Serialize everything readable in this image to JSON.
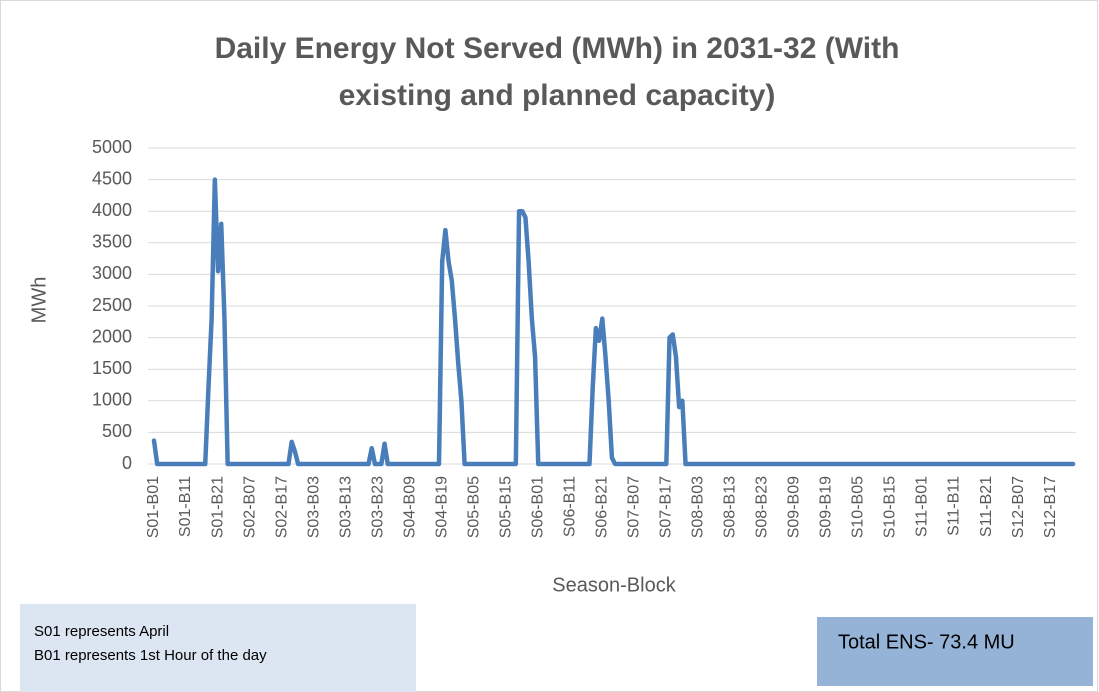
{
  "chart_data": {
    "type": "line",
    "title": [
      "Daily Energy Not Served (MWh) in 2031-32 (With",
      "existing and planned capacity)"
    ],
    "y_label": "MWh",
    "x_label": "Season-Block",
    "notes": [
      "S01 represents April",
      "B01 represents 1st Hour of the day"
    ],
    "total_label": "Total ENS- 73.4 MU",
    "ylim": [
      0,
      5000
    ],
    "yticks": [
      0,
      500,
      1000,
      1500,
      2000,
      2500,
      3000,
      3500,
      4000,
      4500,
      5000
    ],
    "grid": true,
    "categories": [
      "S01-B01",
      null,
      null,
      null,
      null,
      null,
      null,
      null,
      null,
      null,
      "S01-B11",
      null,
      null,
      null,
      null,
      null,
      null,
      null,
      null,
      null,
      "S01-B21",
      null,
      null,
      null,
      null,
      null,
      null,
      null,
      null,
      null,
      "S02-B07",
      null,
      null,
      null,
      null,
      null,
      null,
      null,
      null,
      null,
      "S02-B17",
      null,
      null,
      null,
      null,
      null,
      null,
      null,
      null,
      null,
      "S03-B03",
      null,
      null,
      null,
      null,
      null,
      null,
      null,
      null,
      null,
      "S03-B13",
      null,
      null,
      null,
      null,
      null,
      null,
      null,
      null,
      null,
      "S03-B23",
      null,
      null,
      null,
      null,
      null,
      null,
      null,
      null,
      null,
      "S04-B09",
      null,
      null,
      null,
      null,
      null,
      null,
      null,
      null,
      null,
      "S04-B19",
      null,
      null,
      null,
      null,
      null,
      null,
      null,
      null,
      null,
      "S05-B05",
      null,
      null,
      null,
      null,
      null,
      null,
      null,
      null,
      null,
      "S05-B15",
      null,
      null,
      null,
      null,
      null,
      null,
      null,
      null,
      null,
      "S06-B01",
      null,
      null,
      null,
      null,
      null,
      null,
      null,
      null,
      null,
      "S06-B11",
      null,
      null,
      null,
      null,
      null,
      null,
      null,
      null,
      null,
      "S06-B21",
      null,
      null,
      null,
      null,
      null,
      null,
      null,
      null,
      null,
      "S07-B07",
      null,
      null,
      null,
      null,
      null,
      null,
      null,
      null,
      null,
      "S07-B17",
      null,
      null,
      null,
      null,
      null,
      null,
      null,
      null,
      null,
      "S08-B03",
      null,
      null,
      null,
      null,
      null,
      null,
      null,
      null,
      null,
      "S08-B13",
      null,
      null,
      null,
      null,
      null,
      null,
      null,
      null,
      null,
      "S08-B23",
      null,
      null,
      null,
      null,
      null,
      null,
      null,
      null,
      null,
      "S09-B09",
      null,
      null,
      null,
      null,
      null,
      null,
      null,
      null,
      null,
      "S09-B19",
      null,
      null,
      null,
      null,
      null,
      null,
      null,
      null,
      null,
      "S10-B05",
      null,
      null,
      null,
      null,
      null,
      null,
      null,
      null,
      null,
      "S10-B15",
      null,
      null,
      null,
      null,
      null,
      null,
      null,
      null,
      null,
      "S11-B01",
      null,
      null,
      null,
      null,
      null,
      null,
      null,
      null,
      null,
      "S11-B11",
      null,
      null,
      null,
      null,
      null,
      null,
      null,
      null,
      null,
      "S11-B21",
      null,
      null,
      null,
      null,
      null,
      null,
      null,
      null,
      null,
      "S12-B07",
      null,
      null,
      null,
      null,
      null,
      null,
      null,
      null,
      null,
      "S12-B17",
      null,
      null,
      null,
      null,
      null,
      null,
      null
    ],
    "series": [
      {
        "color": "#4a7ebb",
        "values": [
          370,
          0,
          0,
          0,
          0,
          0,
          0,
          0,
          0,
          0,
          0,
          0,
          0,
          0,
          0,
          0,
          0,
          1200,
          2300,
          4500,
          3050,
          3800,
          2300,
          0,
          0,
          0,
          0,
          0,
          0,
          0,
          0,
          0,
          0,
          0,
          0,
          0,
          0,
          0,
          0,
          0,
          0,
          0,
          0,
          350,
          200,
          0,
          0,
          0,
          0,
          0,
          0,
          0,
          0,
          0,
          0,
          0,
          0,
          0,
          0,
          0,
          0,
          0,
          0,
          0,
          0,
          0,
          0,
          0,
          250,
          0,
          0,
          0,
          320,
          0,
          0,
          0,
          0,
          0,
          0,
          0,
          0,
          0,
          0,
          0,
          0,
          0,
          0,
          0,
          0,
          0,
          3200,
          3700,
          3200,
          2900,
          2300,
          1600,
          1000,
          0,
          0,
          0,
          0,
          0,
          0,
          0,
          0,
          0,
          0,
          0,
          0,
          0,
          0,
          0,
          0,
          0,
          4000,
          4000,
          3900,
          3200,
          2300,
          1700,
          0,
          0,
          0,
          0,
          0,
          0,
          0,
          0,
          0,
          0,
          0,
          0,
          0,
          0,
          0,
          0,
          0,
          1200,
          2150,
          1950,
          2300,
          1700,
          1000,
          100,
          0,
          0,
          0,
          0,
          0,
          0,
          0,
          0,
          0,
          0,
          0,
          0,
          0,
          0,
          0,
          0,
          0,
          2000,
          2050,
          1700,
          900,
          1000,
          0,
          0,
          0,
          0,
          0,
          0,
          0,
          0,
          0,
          0,
          0,
          0,
          0,
          0,
          0,
          0,
          0,
          0,
          0,
          0,
          0,
          0,
          0,
          0,
          0,
          0,
          0,
          0,
          0,
          0,
          0,
          0,
          0,
          0,
          0,
          0,
          0,
          0,
          0,
          0,
          0,
          0,
          0,
          0,
          0,
          0,
          0,
          0,
          0,
          0,
          0,
          0,
          0,
          0,
          0,
          0,
          0,
          0,
          0,
          0,
          0,
          0,
          0,
          0,
          0,
          0,
          0,
          0,
          0,
          0,
          0,
          0,
          0,
          0,
          0,
          0,
          0,
          0,
          0,
          0,
          0,
          0,
          0,
          0,
          0,
          0,
          0,
          0,
          0,
          0,
          0,
          0,
          0,
          0,
          0,
          0,
          0,
          0,
          0,
          0,
          0,
          0,
          0,
          0,
          0,
          0,
          0,
          0,
          0,
          0,
          0,
          0,
          0,
          0,
          0,
          0,
          0,
          0,
          0,
          0,
          0,
          0
        ]
      }
    ]
  }
}
